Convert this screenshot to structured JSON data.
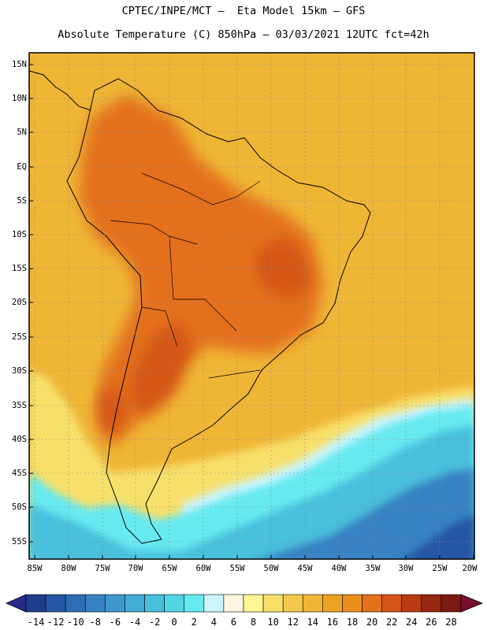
{
  "title": {
    "line1": "CPTEC/INPE/MCT —  Eta Model 15km — GFS",
    "line2": "Absolute Temperature (C) 850hPa — 03/03/2021 12UTC fct=42h"
  },
  "map": {
    "lat_labels": [
      "15N",
      "10N",
      "5N",
      "EQ",
      "5S",
      "10S",
      "15S",
      "20S",
      "25S",
      "30S",
      "35S",
      "40S",
      "45S",
      "50S",
      "55S"
    ],
    "lon_labels": [
      "85W",
      "80W",
      "75W",
      "70W",
      "65W",
      "60W",
      "55W",
      "50W",
      "45W",
      "40W",
      "35W",
      "30W",
      "25W",
      "20W"
    ],
    "lat_range": [
      -58,
      16.5
    ],
    "lon_range": [
      -86.5,
      -20.5
    ],
    "gridlines": true
  },
  "colorbar": {
    "labels": [
      "-14",
      "-12",
      "-10",
      "-8",
      "-6",
      "-4",
      "-2",
      "0",
      "2",
      "4",
      "6",
      "8",
      "10",
      "12",
      "14",
      "16",
      "18",
      "20",
      "22",
      "24",
      "26",
      "28"
    ],
    "colors": [
      "#1f3d8c",
      "#2756a4",
      "#2f6cb5",
      "#3782c2",
      "#3e98cd",
      "#42acd6",
      "#48c0dc",
      "#52d5e4",
      "#66eaf0",
      "#ccf4fb",
      "#fdf7e0",
      "#fdf596",
      "#f7e06a",
      "#f3c94b",
      "#efb636",
      "#eca321",
      "#ea8e1c",
      "#e4701a",
      "#d45618",
      "#b83c14",
      "#962710",
      "#7a1a10"
    ],
    "under_color": "#2a2a8c",
    "over_color": "#7a1030"
  }
}
